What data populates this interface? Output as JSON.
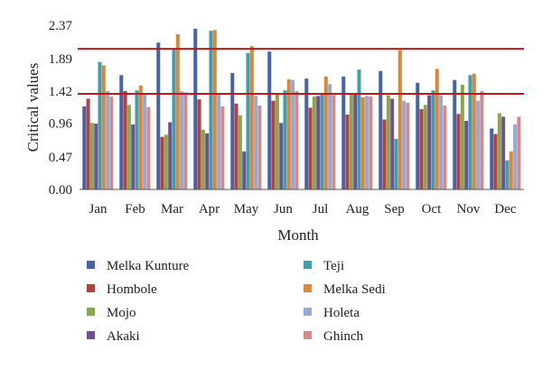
{
  "chart_data": {
    "type": "bar",
    "title": "",
    "xlabel": "Month",
    "ylabel": "Critical values",
    "ylim": [
      0,
      2.37
    ],
    "yticks": [
      "0.00",
      "0.47",
      "0.96",
      "1.42",
      "1.89",
      "2.37"
    ],
    "categories": [
      "Jan",
      "Feb",
      "Mar",
      "Apr",
      "May",
      "Jun",
      "Jul",
      "Aug",
      "Sep",
      "Oct",
      "Nov",
      "Dec"
    ],
    "series": [
      {
        "name": "Melka Kunture",
        "color": "#4463a8",
        "values": [
          1.2,
          1.65,
          2.12,
          2.32,
          1.68,
          1.99,
          1.6,
          1.63,
          1.71,
          1.54,
          1.58,
          0.88
        ]
      },
      {
        "name": "Hombole",
        "color": "#b8403c",
        "values": [
          1.31,
          1.42,
          0.76,
          1.3,
          1.24,
          1.28,
          1.18,
          1.08,
          1.01,
          1.16,
          1.09,
          0.8
        ]
      },
      {
        "name": "Mojo",
        "color": "#88a84a",
        "values": [
          0.96,
          1.22,
          0.79,
          0.86,
          1.07,
          1.38,
          1.34,
          1.37,
          1.36,
          1.22,
          1.51,
          1.1
        ]
      },
      {
        "name": "Akaki",
        "color": "#6d5192",
        "values": [
          0.95,
          0.94,
          0.97,
          0.81,
          0.55,
          0.96,
          1.35,
          1.38,
          1.31,
          1.36,
          0.99,
          1.05
        ]
      },
      {
        "name": "Teji",
        "color": "#3f9db0",
        "values": [
          1.84,
          1.43,
          2.02,
          2.29,
          1.97,
          1.43,
          1.37,
          1.73,
          0.73,
          1.43,
          1.65,
          0.42
        ]
      },
      {
        "name": "Melka Sedi",
        "color": "#de8536",
        "values": [
          1.79,
          1.5,
          2.24,
          2.3,
          2.07,
          1.59,
          1.63,
          1.33,
          2.01,
          1.74,
          1.67,
          0.55
        ]
      },
      {
        "name": "Holeta",
        "color": "#94aad6",
        "values": [
          1.42,
          1.37,
          1.42,
          1.38,
          1.35,
          1.58,
          1.52,
          1.35,
          1.28,
          1.36,
          1.28,
          0.94
        ]
      },
      {
        "name": "Ghinch",
        "color": "#d68a88",
        "values": [
          1.34,
          1.19,
          1.4,
          1.2,
          1.21,
          1.42,
          1.36,
          1.34,
          1.25,
          1.21,
          1.42,
          1.05
        ]
      }
    ],
    "reference_lines": [
      {
        "value": 2.03,
        "color": "#c0181b"
      },
      {
        "value": 1.38,
        "color": "#c0181b"
      }
    ],
    "grid": false,
    "legend_position": "bottom"
  }
}
